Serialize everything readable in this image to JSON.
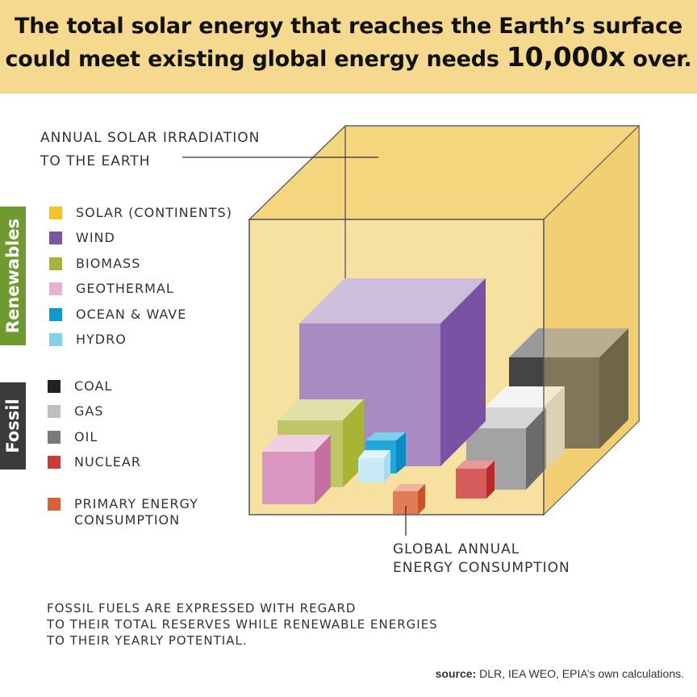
{
  "header": {
    "line1": "The total solar energy that reaches the Earth’s surface",
    "line2_pre": "could meet existing global energy needs",
    "highlight": "10,000x",
    "line2_post": "over.",
    "bg_color": "#f5d98e"
  },
  "callout": {
    "line1": "ANNUAL SOLAR IRRADIATION",
    "line2": "TO THE EARTH"
  },
  "categories": {
    "renewables": "Renewables",
    "fossil": "Fossil"
  },
  "legend": {
    "renewables": [
      {
        "label": "SOLAR (CONTINENTS)",
        "color": "#f2c22f"
      },
      {
        "label": "WIND",
        "color": "#7b55a3"
      },
      {
        "label": "BIOMASS",
        "color": "#a6b43b"
      },
      {
        "label": "GEOTHERMAL",
        "color": "#e4b2d2"
      },
      {
        "label": "OCEAN & WAVE",
        "color": "#0e9ad0"
      },
      {
        "label": "HYDRO",
        "color": "#86cfe8"
      }
    ],
    "fossil": [
      {
        "label": "COAL",
        "color": "#222222"
      },
      {
        "label": "GAS",
        "color": "#bdbdbd"
      },
      {
        "label": "OIL",
        "color": "#7a7a7a"
      },
      {
        "label": "NUCLEAR",
        "color": "#cc3a3a"
      }
    ],
    "consumption": {
      "line1": "PRIMARY ENERGY",
      "line2": "CONSUMPTION",
      "color": "#d9603a"
    }
  },
  "global_label": {
    "line1": "GLOBAL ANNUAL",
    "line2": "ENERGY CONSUMPTION"
  },
  "note": {
    "line1": "FOSSIL FUELS ARE EXPRESSED WITH REGARD",
    "line2": "TO THEIR TOTAL RESERVES WHILE RENEWABLE ENERGIES",
    "line3": "TO THEIR YEARLY POTENTIAL."
  },
  "source": {
    "label": "source:",
    "text": "DLR, IEA WEO, EPIA’s own calculations."
  }
}
